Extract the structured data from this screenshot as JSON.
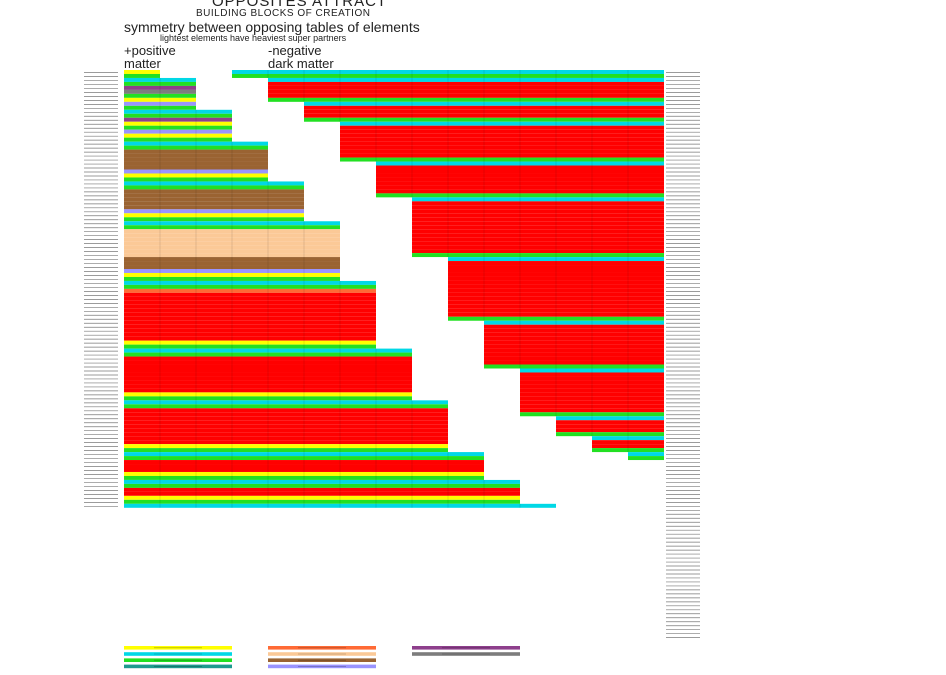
{
  "header": {
    "title": "OPPOSITES ATTRACT",
    "subtitle": "BUILDING BLOCKS OF CREATION",
    "tagline": "symmetry between opposing tables of elements",
    "note": "lightest elements have heaviest super partners",
    "positive_line1": "+positive",
    "positive_line2": "matter",
    "negative_line1": "-negative",
    "negative_line2": "dark matter"
  },
  "colors": {
    "red": "#ff0000",
    "cyan": "#00d8e6",
    "yellow": "#ffff00",
    "green": "#22e022",
    "teal": "#1d9a8e",
    "brown": "#9a6332",
    "peach": "#fbc997",
    "orange": "#ff6a35",
    "lavender": "#9a94ff",
    "purple": "#8e3f8c",
    "gray": "#7d7d7d",
    "white": "#ffffff"
  },
  "tables": {
    "positive": [
      {
        "name": "period-1",
        "columns": 1,
        "bands": [
          "yellow",
          "green"
        ]
      },
      {
        "name": "period-2",
        "columns": 2,
        "bands": [
          "cyan",
          "green",
          "purple",
          "gray",
          "green",
          "yellow",
          "lavender",
          "green"
        ]
      },
      {
        "name": "period-3",
        "columns": 3,
        "bands": [
          "cyan",
          "green",
          "purple",
          "yellow",
          "green",
          "lavender",
          "yellow",
          "green"
        ]
      },
      {
        "name": "period-4",
        "columns": 4,
        "bands": [
          "cyan",
          "green",
          "brown",
          "brown",
          "brown",
          "brown",
          "brown",
          "lavender",
          "yellow",
          "green"
        ]
      },
      {
        "name": "period-5",
        "columns": 5,
        "bands": [
          "cyan",
          "green",
          "brown",
          "brown",
          "brown",
          "brown",
          "brown",
          "lavender",
          "yellow",
          "green"
        ]
      },
      {
        "name": "period-6",
        "columns": 6,
        "bands": [
          "cyan",
          "green",
          "peach",
          "peach",
          "peach",
          "peach",
          "peach",
          "peach",
          "peach",
          "brown",
          "brown",
          "brown",
          "lavender",
          "yellow",
          "green"
        ]
      },
      {
        "name": "period-7",
        "columns": 7,
        "bands": [
          "cyan",
          "green",
          "orange",
          "red",
          "red",
          "red",
          "red",
          "red",
          "red",
          "red",
          "red",
          "red",
          "red",
          "red",
          "red",
          "yellow",
          "green"
        ]
      },
      {
        "name": "period-8",
        "columns": 8,
        "bands": [
          "cyan",
          "green",
          "red",
          "red",
          "red",
          "red",
          "red",
          "red",
          "red",
          "red",
          "red",
          "yellow",
          "green"
        ]
      },
      {
        "name": "period-9",
        "columns": 9,
        "bands": [
          "cyan",
          "green",
          "red",
          "red",
          "red",
          "red",
          "red",
          "red",
          "red",
          "red",
          "red",
          "yellow",
          "green"
        ]
      },
      {
        "name": "period-10",
        "columns": 10,
        "bands": [
          "cyan",
          "green",
          "red",
          "red",
          "red",
          "yellow",
          "green"
        ]
      },
      {
        "name": "period-11",
        "columns": 11,
        "bands": [
          "cyan",
          "green",
          "red",
          "red",
          "yellow",
          "green"
        ]
      },
      {
        "name": "period-12",
        "columns": 12,
        "bands": [
          "cyan"
        ]
      }
    ],
    "negative": [
      {
        "name": "period-1",
        "columns": 12,
        "bands": [
          "cyan",
          "green"
        ]
      },
      {
        "name": "period-2",
        "columns": 11,
        "bands": [
          "cyan",
          "red",
          "red",
          "red",
          "red",
          "green"
        ]
      },
      {
        "name": "period-3",
        "columns": 10,
        "bands": [
          "cyan",
          "red",
          "red",
          "red",
          "green"
        ]
      },
      {
        "name": "period-4",
        "columns": 9,
        "bands": [
          "cyan",
          "red",
          "red",
          "red",
          "red",
          "red",
          "red",
          "red",
          "red",
          "green"
        ]
      },
      {
        "name": "period-5",
        "columns": 8,
        "bands": [
          "cyan",
          "red",
          "red",
          "red",
          "red",
          "red",
          "red",
          "red",
          "green"
        ]
      },
      {
        "name": "period-6",
        "columns": 7,
        "bands": [
          "cyan",
          "red",
          "red",
          "red",
          "red",
          "red",
          "red",
          "red",
          "red",
          "red",
          "red",
          "red",
          "red",
          "red",
          "green"
        ]
      },
      {
        "name": "period-7",
        "columns": 6,
        "bands": [
          "cyan",
          "red",
          "red",
          "red",
          "red",
          "red",
          "red",
          "red",
          "red",
          "red",
          "red",
          "red",
          "red",
          "red",
          "red",
          "green"
        ]
      },
      {
        "name": "period-8",
        "columns": 5,
        "bands": [
          "cyan",
          "red",
          "red",
          "red",
          "red",
          "red",
          "red",
          "red",
          "red",
          "red",
          "red",
          "green"
        ]
      },
      {
        "name": "period-9",
        "columns": 4,
        "bands": [
          "cyan",
          "red",
          "red",
          "red",
          "red",
          "red",
          "red",
          "red",
          "red",
          "red",
          "red",
          "green"
        ]
      },
      {
        "name": "period-10",
        "columns": 3,
        "bands": [
          "cyan",
          "red",
          "red",
          "red",
          "green"
        ]
      },
      {
        "name": "period-11",
        "columns": 2,
        "bands": [
          "cyan",
          "red",
          "red",
          "green"
        ]
      },
      {
        "name": "period-12",
        "columns": 1,
        "bands": [
          "cyan",
          "green"
        ]
      }
    ]
  },
  "legend": {
    "columns": [
      [
        "yellow",
        "cyan",
        "green",
        "teal"
      ],
      [
        "orange",
        "peach",
        "brown",
        "lavender"
      ],
      [
        "purple",
        "gray"
      ]
    ]
  }
}
